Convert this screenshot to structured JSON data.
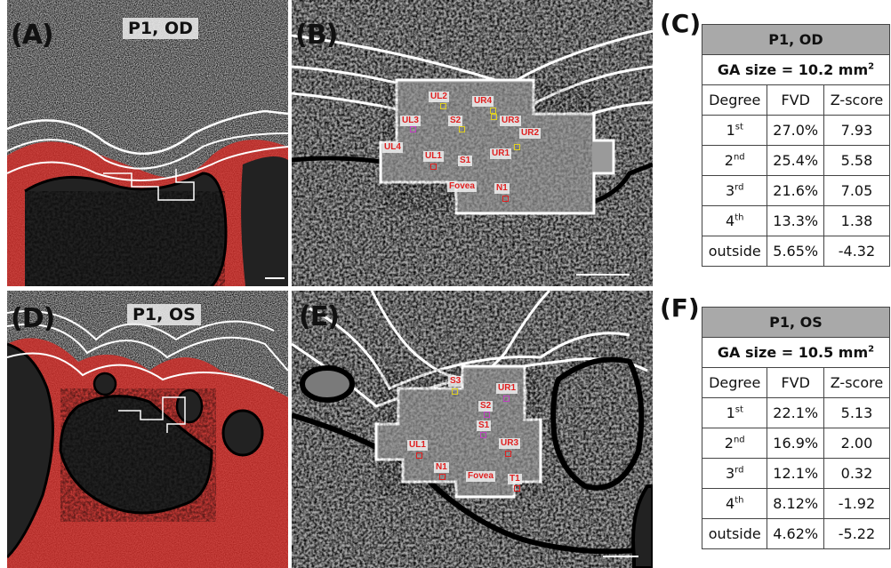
{
  "panels": {
    "A": {
      "label": "(A)",
      "title": "P1, OD"
    },
    "B": {
      "label": "(B)"
    },
    "C": {
      "label": "(C)"
    },
    "D": {
      "label": "(D)",
      "title": "P1, OS"
    },
    "E": {
      "label": "(E)"
    },
    "F": {
      "label": "(F)"
    }
  },
  "tags_B": [
    "UL2",
    "UR4",
    "UL3",
    "S2",
    "UR3",
    "UR2",
    "UL4",
    "UL1",
    "S1",
    "UR1",
    "Fovea",
    "N1"
  ],
  "tags_E": [
    "S3",
    "UR1",
    "S2",
    "S1",
    "UL1",
    "UR3",
    "N1",
    "Fovea",
    "T1"
  ],
  "tableC": {
    "title": "P1, OD",
    "ga_prefix": "GA size = ",
    "ga_value": "10.2 mm",
    "ga_sup": "2",
    "headers": [
      "Degree",
      "FVD",
      "Z-score"
    ],
    "rows": [
      {
        "deg": "1",
        "sup": "st",
        "fvd": "27.0%",
        "z": "7.93"
      },
      {
        "deg": "2",
        "sup": "nd",
        "fvd": "25.4%",
        "z": "5.58"
      },
      {
        "deg": "3",
        "sup": "rd",
        "fvd": "21.6%",
        "z": "7.05"
      },
      {
        "deg": "4",
        "sup": "th",
        "fvd": "13.3%",
        "z": "1.38"
      },
      {
        "deg": "outside",
        "sup": "",
        "fvd": "5.65%",
        "z": "-4.32"
      }
    ]
  },
  "tableF": {
    "title": "P1, OS",
    "ga_prefix": "GA size = ",
    "ga_value": "10.5 mm",
    "ga_sup": "2",
    "headers": [
      "Degree",
      "FVD",
      "Z-score"
    ],
    "rows": [
      {
        "deg": "1",
        "sup": "st",
        "fvd": "22.1%",
        "z": "5.13"
      },
      {
        "deg": "2",
        "sup": "nd",
        "fvd": "16.9%",
        "z": "2.00"
      },
      {
        "deg": "3",
        "sup": "rd",
        "fvd": "12.1%",
        "z": "0.32"
      },
      {
        "deg": "4",
        "sup": "th",
        "fvd": "8.12%",
        "z": "-1.92"
      },
      {
        "deg": "outside",
        "sup": "",
        "fvd": "4.62%",
        "z": "-5.22"
      }
    ]
  },
  "colors": {
    "red": "#e8231f",
    "yellow": "#f0e020",
    "magenta": "#c040c0",
    "blue": "#3070c0",
    "green": "#30b030"
  }
}
